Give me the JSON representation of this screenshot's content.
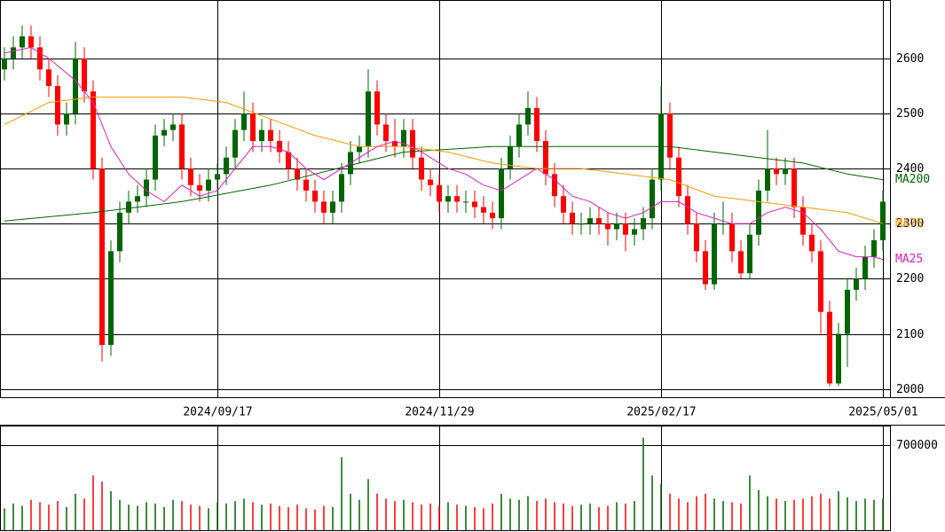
{
  "chart_data": {
    "type": "candlestick",
    "xlim": [
      -0.5,
      99.8
    ],
    "xticks": [
      {
        "value": 24,
        "label": "2024/09/17"
      },
      {
        "value": 49,
        "label": "2024/11/29"
      },
      {
        "value": 74,
        "label": "2025/02/17"
      },
      {
        "value": 99,
        "label": "2025/05/01"
      }
    ],
    "ylim": [
      1985,
      2706
    ],
    "yticks": [
      2000,
      2100,
      2200,
      2300,
      2400,
      2500,
      2600
    ],
    "up_color": "#006400",
    "down_color": "#ff0000",
    "open": [
      2580,
      2600,
      2620,
      2640,
      2620,
      2580,
      2550,
      2480,
      2500,
      2600,
      2540,
      2400,
      2080,
      2250,
      2320,
      2340,
      2350,
      2380,
      2460,
      2470,
      2480,
      2400,
      2370,
      2360,
      2380,
      2390,
      2420,
      2470,
      2500,
      2450,
      2470,
      2450,
      2430,
      2400,
      2380,
      2360,
      2340,
      2320,
      2340,
      2390,
      2430,
      2440,
      2540,
      2480,
      2450,
      2440,
      2470,
      2420,
      2380,
      2370,
      2340,
      2350,
      2340,
      2340,
      2330,
      2320,
      2310,
      2400,
      2440,
      2480,
      2510,
      2450,
      2390,
      2350,
      2320,
      2300,
      2300,
      2310,
      2300,
      2290,
      2300,
      2280,
      2290,
      2310,
      2380,
      2500,
      2420,
      2350,
      2300,
      2250,
      2190,
      2300,
      2300,
      2250,
      2210,
      2280,
      2360,
      2400,
      2390,
      2400,
      2330,
      2280,
      2250,
      2140,
      2010,
      2100,
      2180,
      2200,
      2240,
      2270
    ],
    "high": [
      2620,
      2640,
      2660,
      2660,
      2640,
      2600,
      2570,
      2520,
      2630,
      2620,
      2560,
      2420,
      2270,
      2340,
      2360,
      2370,
      2400,
      2480,
      2490,
      2500,
      2500,
      2420,
      2390,
      2400,
      2410,
      2440,
      2490,
      2540,
      2520,
      2490,
      2490,
      2470,
      2450,
      2420,
      2400,
      2380,
      2360,
      2360,
      2410,
      2450,
      2460,
      2580,
      2560,
      2500,
      2490,
      2490,
      2490,
      2440,
      2400,
      2390,
      2370,
      2370,
      2360,
      2360,
      2350,
      2340,
      2420,
      2460,
      2500,
      2540,
      2530,
      2470,
      2410,
      2370,
      2340,
      2320,
      2330,
      2330,
      2320,
      2320,
      2320,
      2310,
      2330,
      2400,
      2550,
      2520,
      2440,
      2370,
      2320,
      2270,
      2320,
      2340,
      2320,
      2270,
      2300,
      2380,
      2470,
      2420,
      2420,
      2420,
      2350,
      2300,
      2270,
      2160,
      2120,
      2200,
      2220,
      2260,
      2290,
      2360
    ],
    "low": [
      2560,
      2580,
      2600,
      2600,
      2560,
      2530,
      2460,
      2460,
      2480,
      2520,
      2380,
      2050,
      2060,
      2230,
      2300,
      2320,
      2330,
      2360,
      2440,
      2450,
      2380,
      2350,
      2340,
      2340,
      2360,
      2370,
      2400,
      2450,
      2430,
      2430,
      2430,
      2410,
      2380,
      2360,
      2340,
      2320,
      2300,
      2300,
      2320,
      2370,
      2410,
      2420,
      2460,
      2430,
      2420,
      2420,
      2400,
      2360,
      2350,
      2320,
      2320,
      2320,
      2320,
      2310,
      2300,
      2290,
      2290,
      2380,
      2420,
      2460,
      2430,
      2370,
      2330,
      2300,
      2280,
      2280,
      2280,
      2280,
      2260,
      2270,
      2250,
      2260,
      2270,
      2290,
      2360,
      2400,
      2330,
      2280,
      2230,
      2180,
      2180,
      2280,
      2230,
      2200,
      2200,
      2260,
      2340,
      2370,
      2370,
      2310,
      2260,
      2230,
      2100,
      2005,
      2005,
      2040,
      2160,
      2180,
      2220,
      2250
    ],
    "close": [
      2600,
      2620,
      2640,
      2620,
      2580,
      2550,
      2480,
      2500,
      2600,
      2540,
      2400,
      2080,
      2250,
      2320,
      2340,
      2350,
      2380,
      2460,
      2470,
      2480,
      2400,
      2370,
      2360,
      2380,
      2390,
      2420,
      2470,
      2500,
      2450,
      2470,
      2450,
      2430,
      2400,
      2380,
      2360,
      2340,
      2320,
      2340,
      2390,
      2430,
      2440,
      2540,
      2480,
      2450,
      2440,
      2470,
      2420,
      2380,
      2370,
      2340,
      2350,
      2340,
      2340,
      2330,
      2320,
      2310,
      2400,
      2440,
      2480,
      2510,
      2450,
      2390,
      2350,
      2320,
      2300,
      2300,
      2310,
      2300,
      2290,
      2300,
      2280,
      2290,
      2310,
      2380,
      2500,
      2420,
      2350,
      2300,
      2250,
      2190,
      2300,
      2300,
      2250,
      2210,
      2280,
      2360,
      2400,
      2390,
      2400,
      2330,
      2280,
      2250,
      2140,
      2010,
      2100,
      2180,
      2200,
      2240,
      2270,
      2340
    ],
    "moving_averages": [
      {
        "name": "MA200",
        "color": "#006400",
        "x": [
          0,
          10,
          20,
          30,
          40,
          45,
          50,
          55,
          60,
          70,
          75,
          80,
          85,
          90,
          95,
          99
        ],
        "values": [
          2305,
          2320,
          2340,
          2370,
          2410,
          2430,
          2435,
          2440,
          2440,
          2440,
          2440,
          2430,
          2420,
          2410,
          2390,
          2380
        ]
      },
      {
        "name": "MA75",
        "color": "#ff9900",
        "x": [
          0,
          5,
          10,
          15,
          20,
          25,
          30,
          35,
          40,
          45,
          50,
          55,
          60,
          65,
          70,
          75,
          80,
          85,
          90,
          95,
          99
        ],
        "values": [
          2480,
          2520,
          2530,
          2530,
          2530,
          2520,
          2490,
          2460,
          2440,
          2440,
          2430,
          2410,
          2400,
          2400,
          2390,
          2380,
          2350,
          2340,
          2330,
          2320,
          2300
        ]
      },
      {
        "name": "MA25",
        "color": "#e020c0",
        "x": [
          0,
          3,
          5,
          8,
          10,
          12,
          14,
          16,
          18,
          20,
          22,
          24,
          26,
          28,
          30,
          32,
          34,
          36,
          38,
          40,
          42,
          44,
          46,
          48,
          50,
          52,
          54,
          56,
          58,
          60,
          62,
          64,
          66,
          68,
          70,
          72,
          74,
          76,
          78,
          80,
          82,
          84,
          86,
          88,
          90,
          92,
          94,
          96,
          98,
          99
        ],
        "values": [
          2610,
          2620,
          2600,
          2560,
          2520,
          2440,
          2390,
          2360,
          2340,
          2370,
          2350,
          2360,
          2400,
          2440,
          2440,
          2430,
          2400,
          2380,
          2400,
          2420,
          2440,
          2450,
          2440,
          2420,
          2400,
          2390,
          2370,
          2360,
          2380,
          2400,
          2380,
          2350,
          2340,
          2320,
          2310,
          2320,
          2340,
          2340,
          2320,
          2310,
          2300,
          2300,
          2320,
          2330,
          2320,
          2290,
          2250,
          2240,
          2240,
          2235
        ]
      }
    ],
    "volume": {
      "ylim": [
        0,
        860000
      ],
      "yticks": [
        700000
      ],
      "values": [
        180000,
        220000,
        200000,
        250000,
        230000,
        210000,
        240000,
        190000,
        300000,
        260000,
        450000,
        400000,
        320000,
        250000,
        210000,
        200000,
        230000,
        220000,
        190000,
        250000,
        240000,
        210000,
        200000,
        180000,
        230000,
        220000,
        240000,
        260000,
        230000,
        210000,
        220000,
        200000,
        190000,
        210000,
        180000,
        170000,
        200000,
        190000,
        600000,
        300000,
        250000,
        420000,
        300000,
        260000,
        240000,
        250000,
        230000,
        210000,
        220000,
        200000,
        230000,
        210000,
        200000,
        190000,
        180000,
        220000,
        300000,
        260000,
        250000,
        280000,
        240000,
        260000,
        230000,
        220000,
        200000,
        210000,
        220000,
        190000,
        200000,
        230000,
        220000,
        240000,
        760000,
        450000,
        380000,
        300000,
        260000,
        230000,
        280000,
        300000,
        260000,
        240000,
        230000,
        220000,
        450000,
        330000,
        280000,
        260000,
        240000,
        250000,
        260000,
        280000,
        300000,
        260000,
        320000,
        270000,
        240000,
        260000,
        250000,
        260000
      ]
    }
  }
}
